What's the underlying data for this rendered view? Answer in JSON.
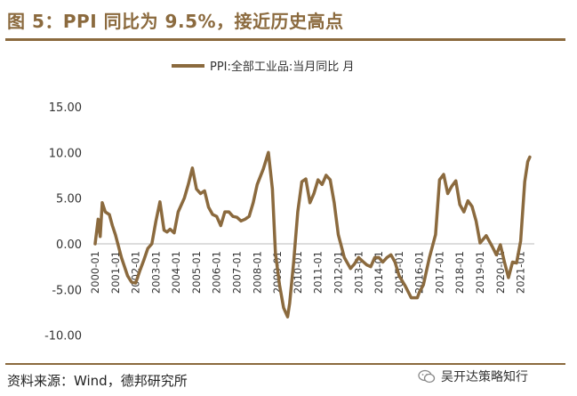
{
  "header": {
    "title": "图 5：PPI 同比为 9.5%，接近历史高点"
  },
  "footer": {
    "source": "资料来源：Wind，德邦研究所",
    "watermark": "吴开达策略知行",
    "watermark_icon": "wechat-icon"
  },
  "colors": {
    "accent": "#8b6a3e",
    "series": "#8b6a3e"
  },
  "chart_data": {
    "type": "line",
    "legend": "PPI:全部工业品:当月同比  月",
    "legend_position": "top-center",
    "grid": false,
    "ylim": [
      -10,
      15
    ],
    "yticks": [
      "15.00",
      "10.00",
      "5.00",
      "0.00",
      "-5.00",
      "-10.00"
    ],
    "xlim": [
      2000.0,
      2021.5
    ],
    "xticks": [
      "2000-01",
      "2001-01",
      "2002-01",
      "2003-01",
      "2004-01",
      "2005-01",
      "2006-01",
      "2007-01",
      "2008-01",
      "2009-01",
      "2010-01",
      "2011-01",
      "2012-01",
      "2013-01",
      "2014-01",
      "2015-01",
      "2016-01",
      "2017-01",
      "2018-01",
      "2019-01",
      "2020-01",
      "2021-01"
    ],
    "series": [
      {
        "name": "PPI:全部工业品:当月同比",
        "x": [
          2000.0,
          2000.15,
          2000.25,
          2000.35,
          2000.5,
          2000.7,
          2000.85,
          2001.0,
          2001.3,
          2001.6,
          2001.8,
          2002.0,
          2002.2,
          2002.4,
          2002.6,
          2002.8,
          2003.0,
          2003.2,
          2003.4,
          2003.55,
          2003.7,
          2003.9,
          2004.1,
          2004.4,
          2004.6,
          2004.8,
          2005.0,
          2005.2,
          2005.4,
          2005.6,
          2005.8,
          2006.0,
          2006.2,
          2006.4,
          2006.6,
          2006.8,
          2007.0,
          2007.2,
          2007.4,
          2007.6,
          2007.8,
          2008.0,
          2008.3,
          2008.55,
          2008.75,
          2008.9,
          2009.1,
          2009.3,
          2009.5,
          2009.6,
          2009.8,
          2010.0,
          2010.2,
          2010.4,
          2010.6,
          2010.8,
          2011.0,
          2011.2,
          2011.4,
          2011.6,
          2011.8,
          2012.0,
          2012.3,
          2012.6,
          2012.8,
          2013.0,
          2013.2,
          2013.4,
          2013.6,
          2013.8,
          2014.0,
          2014.2,
          2014.4,
          2014.6,
          2014.8,
          2015.0,
          2015.3,
          2015.6,
          2015.9,
          2016.0,
          2016.2,
          2016.5,
          2016.8,
          2017.0,
          2017.2,
          2017.4,
          2017.6,
          2017.8,
          2018.0,
          2018.2,
          2018.4,
          2018.6,
          2018.8,
          2019.0,
          2019.3,
          2019.6,
          2019.8,
          2020.0,
          2020.2,
          2020.4,
          2020.6,
          2020.8,
          2021.0,
          2021.2,
          2021.35,
          2021.45
        ],
        "values": [
          0.0,
          2.7,
          0.8,
          4.5,
          3.5,
          3.2,
          2.0,
          1.0,
          -1.5,
          -3.5,
          -4.2,
          -4.3,
          -3.0,
          -1.8,
          -0.5,
          0.0,
          2.5,
          4.6,
          1.5,
          1.3,
          1.6,
          1.2,
          3.5,
          5.0,
          6.5,
          8.3,
          6.0,
          5.5,
          5.8,
          4.0,
          3.2,
          3.0,
          2.0,
          3.5,
          3.5,
          3.0,
          2.9,
          2.5,
          2.7,
          3.0,
          4.5,
          6.5,
          8.2,
          10.0,
          6.0,
          -1.0,
          -4.5,
          -7.0,
          -8.0,
          -6.5,
          -2.0,
          3.5,
          6.8,
          7.1,
          4.5,
          5.5,
          7.0,
          6.5,
          7.5,
          7.0,
          4.5,
          1.0,
          -1.5,
          -2.7,
          -2.2,
          -1.5,
          -1.9,
          -2.3,
          -2.5,
          -1.5,
          -1.5,
          -2.0,
          -1.5,
          -1.2,
          -2.0,
          -3.5,
          -4.6,
          -5.9,
          -5.9,
          -5.3,
          -4.5,
          -1.5,
          1.0,
          7.0,
          7.6,
          5.5,
          6.3,
          6.9,
          4.3,
          3.5,
          4.7,
          4.1,
          2.5,
          0.1,
          0.9,
          -0.3,
          -1.2,
          -0.1,
          -2.0,
          -3.7,
          -2.0,
          -2.1,
          0.3,
          6.8,
          9.0,
          9.5
        ]
      }
    ]
  }
}
